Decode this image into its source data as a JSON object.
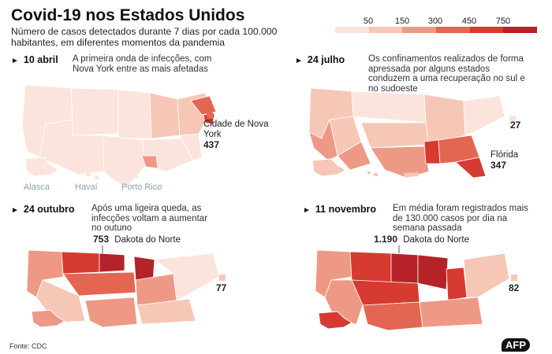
{
  "header": {
    "title": "Covid-19 nos Estados Unidos",
    "subtitle": "Número de casos detectados durante 7 dias por cada 100.000 habitantes, em diferentes momentos da pandemia"
  },
  "legend": {
    "labels": [
      "50",
      "150",
      "300",
      "450",
      "750"
    ],
    "colors": [
      "#fbe4dc",
      "#f6c7b6",
      "#ee9985",
      "#e36652",
      "#d63a31",
      "#b52227"
    ]
  },
  "panels": [
    {
      "date": "10 abril",
      "description": "A primeira onda de infecções, com Nova York entre as mais afetadas",
      "callout_label": "Cidade de Nova York",
      "callout_value": "437",
      "insets": [
        "Alasca",
        "Havaí",
        "Porto Rico"
      ]
    },
    {
      "date": "24 julho",
      "description": "Os confinamentos realizados de forma apressada por alguns estados conduzem a uma recuperação no sul e no sudoeste",
      "callout_label": "Flórida",
      "callout_value": "347",
      "side_value": "27"
    },
    {
      "date": "24 outubro",
      "description": "Após uma ligeira queda, as infecções voltam a aumentar no outuno",
      "callout_label": "Dakota do Norte",
      "callout_value": "753",
      "side_value": "77"
    },
    {
      "date": "11 novembro",
      "description": "Em média foram registrados mais de 130.000 casos por dia na semana passada",
      "callout_label": "Dakota do Norte",
      "callout_value": "1.190",
      "side_value": "82"
    }
  ],
  "footer": {
    "source": "Fonte: CDC",
    "logo": "AFP"
  }
}
